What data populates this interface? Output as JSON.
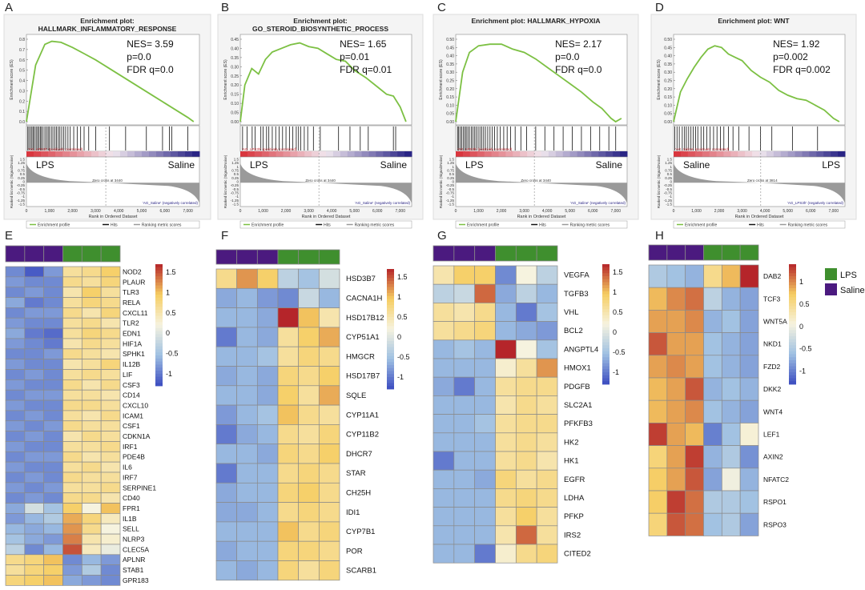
{
  "gsea_common": {
    "ylabel": "Enrichment score (ES)",
    "rank_ylabel": "Ranked list metric (Signal2Noise)",
    "xlabel": "Rank in Ordered Dataset",
    "x_ticks": [
      "0",
      "1,000",
      "2,000",
      "3,000",
      "4,000",
      "5,000",
      "6,000",
      "7,000"
    ],
    "rank_ticks": [
      "1.5",
      "1.25",
      "1",
      "0.75",
      "0.5",
      "0.25",
      "0",
      "-0.25",
      "-0.5",
      "-0.75",
      "-1",
      "-1.25",
      "-1.5"
    ],
    "legend_items": [
      "Enrichment profile",
      "Hits",
      "Ranking metric scores"
    ]
  },
  "heatmap_legend": {
    "groups": [
      "LPS",
      "Saline"
    ],
    "colors": [
      "#3f8f2e",
      "#4b1a7f"
    ]
  },
  "colormap": {
    "low": "#3b4cc0",
    "mid_low": "#9fc0e2",
    "mid": "#f6f3df",
    "mid_high": "#f6cd62",
    "high": "#b5252a"
  },
  "chart_data": [
    {
      "type": "line",
      "panel": "A",
      "title_line1": "Enrichment plot:",
      "title_line2": "HALLMARK_INFLAMMATORY_RESPONSE",
      "stats": [
        "NES= 3.59",
        "p=0.0",
        "FDR q=0.0"
      ],
      "ylim": [
        0,
        0.8
      ],
      "y_ticks": [
        "0.8",
        "0.7",
        "0.6",
        "0.5",
        "0.4",
        "0.3",
        "0.2",
        "0.1",
        "0.0"
      ],
      "x": [
        0,
        400,
        800,
        1100,
        1500,
        2000,
        2500,
        3000,
        3500,
        4000,
        4500,
        5000,
        5500,
        6000,
        6500,
        7000,
        7250
      ],
      "es": [
        0.0,
        0.55,
        0.75,
        0.78,
        0.77,
        0.72,
        0.66,
        0.6,
        0.53,
        0.46,
        0.39,
        0.32,
        0.25,
        0.18,
        0.11,
        0.04,
        0.0
      ],
      "hits": [
        60,
        110,
        180,
        240,
        300,
        350,
        420,
        480,
        540,
        600,
        650,
        720,
        800,
        870,
        940,
        1000,
        1080,
        1150,
        1230,
        1300,
        1380,
        1450,
        1530,
        1620,
        1700,
        1800,
        1900,
        2050,
        2200,
        2350,
        2500,
        2700,
        3000,
        3600,
        4300,
        5200,
        5900,
        6200,
        6300,
        7000
      ],
      "left_group": "LPS",
      "right_group": "Saline",
      "pos_label": "'AG_LPS3h' (positively correlated)",
      "neg_label": "'AG_Saline' (negatively correlated)",
      "zero_cross": "Zero cross at 3440",
      "zero_cross_rank": 3440
    },
    {
      "type": "line",
      "panel": "B",
      "title_line1": "Enrichment plot:",
      "title_line2": "GO_STEROID_BIOSYNTHETIC_PROCESS",
      "stats": [
        "NES= 1.65",
        "p=0.01",
        "FDR q=0.01"
      ],
      "ylim": [
        0,
        0.45
      ],
      "y_ticks": [
        "0.45",
        "0.40",
        "0.35",
        "0.30",
        "0.25",
        "0.20",
        "0.15",
        "0.10",
        "0.05",
        "0.00"
      ],
      "x": [
        0,
        200,
        500,
        800,
        1100,
        1400,
        1800,
        2200,
        2600,
        3000,
        3400,
        3800,
        4200,
        4600,
        5000,
        5500,
        6000,
        6400,
        6700,
        7000,
        7250
      ],
      "es": [
        0.0,
        0.2,
        0.29,
        0.26,
        0.34,
        0.38,
        0.4,
        0.42,
        0.43,
        0.41,
        0.4,
        0.37,
        0.34,
        0.33,
        0.28,
        0.24,
        0.19,
        0.15,
        0.14,
        0.08,
        0.0
      ],
      "hits": [
        100,
        300,
        520,
        650,
        900,
        1000,
        1150,
        1250,
        1400,
        1550,
        1700,
        1850,
        2000,
        2150,
        2300,
        2450,
        2550,
        2650,
        2800,
        2950,
        3200,
        3500,
        4300,
        4800,
        5250,
        5600,
        6700,
        6800
      ],
      "left_group": "LPS",
      "right_group": "Saline",
      "pos_label": "'AG_LPS3h' (positively correlated)",
      "neg_label": "'AG_Saline' (negatively correlated)",
      "zero_cross": "Zero cross at 3440",
      "zero_cross_rank": 3440
    },
    {
      "type": "line",
      "panel": "C",
      "title_line1": "Enrichment plot: HALLMARK_HYPOXIA",
      "title_line2": "",
      "stats": [
        "NES= 2.17",
        "p=0.0",
        "FDR q=0.0"
      ],
      "ylim": [
        0,
        0.5
      ],
      "y_ticks": [
        "0.50",
        "0.45",
        "0.40",
        "0.35",
        "0.30",
        "0.25",
        "0.20",
        "0.15",
        "0.10",
        "0.05",
        "0.00"
      ],
      "x": [
        0,
        300,
        600,
        1000,
        1500,
        2000,
        2500,
        3000,
        3500,
        4000,
        4500,
        5000,
        5500,
        6000,
        6400,
        6800,
        7000,
        7250
      ],
      "es": [
        0.0,
        0.3,
        0.42,
        0.46,
        0.47,
        0.47,
        0.44,
        0.42,
        0.38,
        0.33,
        0.28,
        0.23,
        0.18,
        0.12,
        0.08,
        0.02,
        0.0,
        0.02
      ],
      "hits": [
        80,
        130,
        200,
        260,
        330,
        400,
        460,
        530,
        600,
        680,
        750,
        830,
        900,
        980,
        1060,
        1140,
        1220,
        1300,
        1400,
        1500,
        1600,
        1700,
        1820,
        1950,
        2100,
        2250,
        2400,
        2600,
        2850,
        3100,
        3500,
        3900,
        4300,
        4700,
        5100,
        5500,
        5900,
        6300,
        6700,
        7000
      ],
      "left_group": "LPS",
      "right_group": "Saline",
      "pos_label": "'AG_LPS3h' (positively correlated)",
      "neg_label": "'AG_Saline' (negatively correlated)",
      "zero_cross": "Zero cross at 3440",
      "zero_cross_rank": 3440
    },
    {
      "type": "line",
      "panel": "D",
      "title_line1": "Enrichment plot: WNT",
      "title_line2": "",
      "stats": [
        "NES= 1.92",
        "p=0.002",
        "FDR q=0.002"
      ],
      "ylim": [
        0,
        0.5
      ],
      "y_ticks": [
        "0.50",
        "0.45",
        "0.40",
        "0.35",
        "0.30",
        "0.25",
        "0.20",
        "0.15",
        "0.10",
        "0.05",
        "0.00"
      ],
      "x": [
        0,
        300,
        600,
        900,
        1200,
        1500,
        1800,
        2100,
        2400,
        2700,
        3000,
        3400,
        3800,
        4200,
        4600,
        5000,
        5400,
        5800,
        6200,
        6600,
        7000,
        7250
      ],
      "es": [
        0.0,
        0.18,
        0.26,
        0.33,
        0.39,
        0.44,
        0.46,
        0.45,
        0.41,
        0.39,
        0.37,
        0.31,
        0.27,
        0.24,
        0.19,
        0.16,
        0.14,
        0.13,
        0.1,
        0.07,
        0.02,
        0.0
      ],
      "hits": [
        50,
        150,
        250,
        380,
        480,
        560,
        660,
        760,
        860,
        960,
        1060,
        1200,
        1320,
        1450,
        1600,
        1750,
        1900,
        2050,
        2200,
        2400,
        2600,
        2850,
        3300,
        3800,
        4300,
        5200,
        6300
      ],
      "left_group": "Saline",
      "right_group": "LPS",
      "pos_label": "'AG_Saline' (positively correlated)",
      "neg_label": "'AG_LPS3h' (negatively correlated)",
      "zero_cross": "Zero cross at 3814",
      "zero_cross_rank": 3814
    },
    {
      "type": "heatmap",
      "panel": "E",
      "scale_ticks": [
        "1.5",
        "1",
        "0.5",
        "0",
        "-0.5",
        "-1"
      ],
      "scale_range": [
        -1.3,
        1.7
      ],
      "groups": [
        "Saline",
        "Saline",
        "Saline",
        "LPS",
        "LPS",
        "LPS"
      ],
      "genes": [
        "NOD2",
        "PLAUR",
        "TLR3",
        "RELA",
        "CXCL11",
        "TLR2",
        "EDN1",
        "HIF1A",
        "SPHK1",
        "IL12B",
        "LIF",
        "CSF3",
        "CD14",
        "CXCL10",
        "ICAM1",
        "CSF1",
        "CDKN1A",
        "IRF1",
        "PDE4B",
        "IL6",
        "IRF7",
        "SERPINE1",
        "CD40",
        "FPR1",
        "IL1B",
        "SELL",
        "NLRP3",
        "CLEC5A",
        "APLNR",
        "STAB1",
        "GPR183"
      ],
      "values": [
        [
          -0.9,
          -1.2,
          -0.8,
          0.6,
          0.7,
          0.9
        ],
        [
          -0.8,
          -0.9,
          -0.9,
          0.7,
          0.6,
          0.8
        ],
        [
          -0.9,
          -0.8,
          -0.9,
          0.5,
          0.9,
          0.6
        ],
        [
          -0.7,
          -1.0,
          -0.9,
          0.6,
          0.8,
          0.7
        ],
        [
          -0.9,
          -0.8,
          -0.8,
          0.7,
          0.5,
          0.8
        ],
        [
          -0.8,
          -0.9,
          -0.9,
          0.6,
          0.7,
          0.5
        ],
        [
          -0.7,
          -1.0,
          -1.1,
          0.6,
          0.8,
          0.7
        ],
        [
          -0.8,
          -0.9,
          -1.0,
          0.5,
          0.7,
          0.6
        ],
        [
          -0.9,
          -0.9,
          -0.8,
          0.7,
          0.6,
          0.5
        ],
        [
          -0.8,
          -0.9,
          -0.9,
          0.5,
          0.6,
          0.8
        ],
        [
          -0.9,
          -0.8,
          -0.9,
          0.6,
          0.7,
          0.6
        ],
        [
          -0.8,
          -0.9,
          -0.9,
          0.7,
          0.5,
          0.7
        ],
        [
          -0.9,
          -0.8,
          -0.8,
          0.6,
          0.6,
          0.5
        ],
        [
          -0.8,
          -0.9,
          -0.9,
          0.7,
          0.7,
          0.6
        ],
        [
          -0.9,
          -0.8,
          -0.9,
          0.6,
          0.5,
          0.7
        ],
        [
          -0.8,
          -0.9,
          -0.8,
          0.7,
          0.6,
          0.6
        ],
        [
          -0.9,
          -0.8,
          -0.9,
          0.5,
          0.7,
          0.6
        ],
        [
          -0.8,
          -0.9,
          -0.9,
          0.6,
          0.6,
          0.7
        ],
        [
          -0.9,
          -0.8,
          -0.8,
          0.7,
          0.5,
          0.6
        ],
        [
          -0.8,
          -0.9,
          -0.9,
          0.6,
          0.7,
          0.5
        ],
        [
          -0.9,
          -0.8,
          -0.9,
          0.7,
          0.6,
          0.6
        ],
        [
          -0.8,
          -0.9,
          -0.8,
          0.6,
          0.6,
          0.7
        ],
        [
          -0.9,
          -0.8,
          -0.9,
          0.7,
          0.7,
          0.5
        ],
        [
          -0.7,
          -0.1,
          -0.5,
          0.9,
          0.2,
          1.0
        ],
        [
          -0.8,
          -0.6,
          -0.4,
          1.1,
          0.8,
          0.4
        ],
        [
          -0.6,
          -0.7,
          -0.6,
          1.2,
          0.7,
          0.2
        ],
        [
          -0.5,
          -0.7,
          -0.8,
          1.3,
          0.5,
          0.3
        ],
        [
          -0.3,
          -0.9,
          -0.6,
          1.5,
          0.4,
          0.1
        ],
        [
          0.7,
          0.8,
          1.0,
          -0.9,
          -0.6,
          -0.8
        ],
        [
          0.6,
          0.8,
          0.9,
          -0.8,
          -0.4,
          -0.9
        ],
        [
          0.8,
          0.9,
          1.0,
          -0.7,
          -0.8,
          -0.9
        ]
      ]
    },
    {
      "type": "heatmap",
      "panel": "F",
      "scale_ticks": [
        "1.5",
        "1",
        "0.5",
        "0",
        "-0.5",
        "-1"
      ],
      "scale_range": [
        -1.3,
        1.7
      ],
      "groups": [
        "Saline",
        "Saline",
        "Saline",
        "LPS",
        "LPS",
        "LPS"
      ],
      "genes": [
        "HSD3B7",
        "CACNA1H",
        "HSD17B12",
        "CYP51A1",
        "HMGCR",
        "HSD17B7",
        "SQLE",
        "CYP11A1",
        "CYP11B2",
        "DHCR7",
        "STAR",
        "CH25H",
        "IDI1",
        "CYP7B1",
        "POR",
        "SCARB1"
      ],
      "values": [
        [
          0.7,
          1.2,
          0.9,
          -0.3,
          -0.5,
          -0.1
        ],
        [
          -0.7,
          -0.6,
          -0.8,
          -0.9,
          -0.2,
          -0.6
        ],
        [
          -0.6,
          -0.6,
          -0.7,
          1.7,
          1.0,
          0.5
        ],
        [
          -1.0,
          -0.6,
          -0.7,
          0.6,
          0.9,
          1.1
        ],
        [
          -0.6,
          -0.6,
          -0.5,
          0.6,
          0.8,
          0.7
        ],
        [
          -0.7,
          -0.6,
          -0.7,
          0.8,
          0.7,
          0.9
        ],
        [
          -0.6,
          -0.6,
          -0.7,
          0.9,
          0.6,
          1.1
        ],
        [
          -0.8,
          -0.6,
          -0.5,
          1.0,
          0.7,
          0.6
        ],
        [
          -1.0,
          -0.7,
          -0.6,
          0.7,
          0.6,
          0.8
        ],
        [
          -0.6,
          -0.6,
          -0.7,
          0.8,
          0.7,
          0.9
        ],
        [
          -1.0,
          -0.6,
          -0.6,
          0.7,
          0.8,
          0.7
        ],
        [
          -0.7,
          -0.6,
          -0.6,
          0.8,
          0.9,
          0.7
        ],
        [
          -0.7,
          -0.7,
          -0.6,
          0.7,
          0.8,
          0.7
        ],
        [
          -0.6,
          -0.6,
          -0.6,
          1.0,
          0.7,
          0.8
        ],
        [
          -0.7,
          -0.6,
          -0.6,
          0.8,
          0.8,
          0.7
        ],
        [
          -0.6,
          -0.7,
          -0.6,
          0.8,
          0.6,
          0.8
        ]
      ]
    },
    {
      "type": "heatmap",
      "panel": "G",
      "scale_ticks": [
        "1.5",
        "1",
        "0.5",
        "0",
        "-0.5",
        "-1"
      ],
      "scale_range": [
        -1.3,
        1.7
      ],
      "groups": [
        "Saline",
        "Saline",
        "Saline",
        "LPS",
        "LPS",
        "LPS"
      ],
      "genes": [
        "VEGFA",
        "TGFB3",
        "VHL",
        "BCL2",
        "ANGPTL4",
        "HMOX1",
        "PDGFB",
        "SLC2A1",
        "PFKFB3",
        "HK2",
        "HK1",
        "EGFR",
        "LDHA",
        "PFKP",
        "IRS2",
        "CITED2"
      ],
      "values": [
        [
          0.5,
          0.9,
          0.9,
          -0.9,
          0.2,
          -0.3
        ],
        [
          -0.3,
          -0.2,
          1.4,
          -0.7,
          -0.3,
          -0.6
        ],
        [
          0.6,
          0.5,
          0.7,
          -0.6,
          -1.0,
          -0.5
        ],
        [
          0.6,
          0.7,
          0.8,
          -0.6,
          -0.7,
          -0.8
        ],
        [
          -0.6,
          -0.5,
          -0.6,
          1.7,
          0.2,
          -0.5
        ],
        [
          -0.6,
          -0.6,
          -0.6,
          0.3,
          0.6,
          1.2
        ],
        [
          -0.7,
          -1.0,
          -0.6,
          0.6,
          0.7,
          0.7
        ],
        [
          -0.6,
          -0.6,
          -0.6,
          0.5,
          0.7,
          0.6
        ],
        [
          -0.6,
          -0.6,
          -0.5,
          0.6,
          0.7,
          0.7
        ],
        [
          -0.6,
          -0.6,
          -0.6,
          0.6,
          0.7,
          0.6
        ],
        [
          -1.0,
          -0.6,
          -0.6,
          0.6,
          0.7,
          0.5
        ],
        [
          -0.6,
          -0.6,
          -0.7,
          0.8,
          0.6,
          0.7
        ],
        [
          -0.6,
          -0.6,
          -0.6,
          0.7,
          0.8,
          0.7
        ],
        [
          -0.6,
          -0.6,
          -0.6,
          0.6,
          0.9,
          0.6
        ],
        [
          -0.6,
          -0.6,
          -0.6,
          0.5,
          1.4,
          0.6
        ],
        [
          -0.6,
          -0.6,
          -1.0,
          0.3,
          0.7,
          0.8
        ]
      ]
    },
    {
      "type": "heatmap",
      "panel": "H",
      "scale_ticks": [
        "1",
        "0.5",
        "0",
        "-0.5",
        "-1"
      ],
      "scale_range": [
        -1.3,
        1.4
      ],
      "groups": [
        "Saline",
        "Saline",
        "Saline",
        "LPS",
        "LPS",
        "LPS"
      ],
      "genes": [
        "DAB2",
        "TCF3",
        "WNT5A",
        "NKD1",
        "FZD2",
        "DKK2",
        "WNT4",
        "LEF1",
        "AXIN2",
        "NFATC2",
        "RSPO1",
        "RSPO3"
      ],
      "values": [
        [
          -0.5,
          -0.6,
          -0.7,
          0.5,
          0.8,
          1.4
        ],
        [
          0.8,
          1.0,
          1.1,
          -0.4,
          -0.7,
          -0.8
        ],
        [
          0.9,
          0.9,
          1.0,
          -0.7,
          -0.6,
          -0.8
        ],
        [
          1.2,
          0.9,
          0.9,
          -0.6,
          -0.7,
          -0.8
        ],
        [
          0.9,
          1.0,
          0.9,
          -0.6,
          -0.7,
          -0.8
        ],
        [
          0.8,
          0.9,
          1.2,
          -0.7,
          -0.6,
          -0.7
        ],
        [
          0.8,
          0.9,
          1.0,
          -0.6,
          -0.7,
          -0.8
        ],
        [
          1.3,
          0.9,
          0.8,
          -1.0,
          -0.6,
          0.1
        ],
        [
          0.6,
          0.9,
          1.3,
          -0.7,
          -0.5,
          -0.9
        ],
        [
          0.7,
          0.9,
          1.2,
          -0.8,
          0.0,
          -0.7
        ],
        [
          0.7,
          1.3,
          1.1,
          -0.5,
          -0.5,
          -0.6
        ],
        [
          0.6,
          1.2,
          1.1,
          -0.6,
          -0.5,
          -0.8
        ]
      ]
    }
  ]
}
